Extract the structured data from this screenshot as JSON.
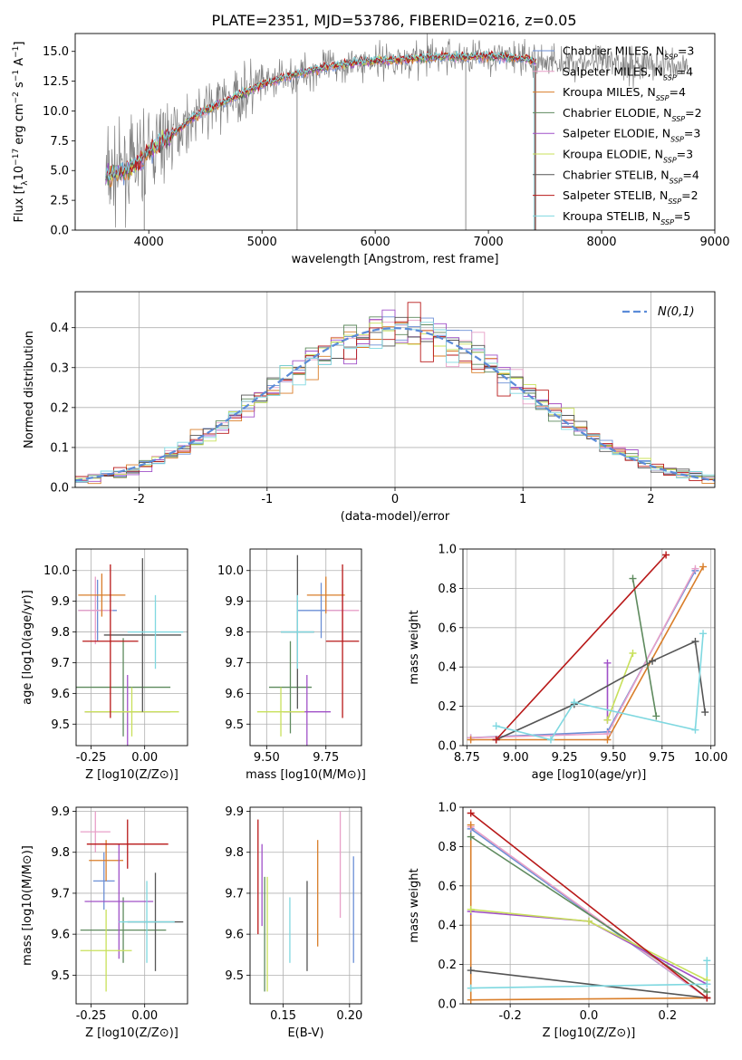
{
  "figure_title": "PLATE=2351, MJD=53786, FIBERID=0216, z=0.05",
  "series_styles": [
    {
      "name": "Chabrier MILES",
      "nssp": "3",
      "color": "#6b8fd6"
    },
    {
      "name": "Salpeter MILES",
      "nssp": "4",
      "color": "#e8a0c8"
    },
    {
      "name": "Kroupa MILES",
      "nssp": "4",
      "color": "#d97e2a"
    },
    {
      "name": "Chabrier ELODIE",
      "nssp": "2",
      "color": "#5e8a5e"
    },
    {
      "name": "Salpeter ELODIE",
      "nssp": "3",
      "color": "#a050c8"
    },
    {
      "name": "Kroupa ELODIE",
      "nssp": "3",
      "color": "#c8e05a"
    },
    {
      "name": "Chabrier STELIB",
      "nssp": "4",
      "color": "#555555"
    },
    {
      "name": "Salpeter STELIB",
      "nssp": "2",
      "color": "#b81818"
    },
    {
      "name": "Kroupa STELIB",
      "nssp": "5",
      "color": "#7fd8e0"
    }
  ],
  "chart_data": [
    {
      "id": "spectrum",
      "type": "line",
      "xlabel": "wavelength [Angstrom, rest frame]",
      "ylabel": "Flux [f_λ 10^-17 erg cm^-2 s^-1 A^-1]",
      "xlim": [
        3350,
        9000
      ],
      "ylim": [
        0,
        16.5
      ],
      "xticks": [
        4000,
        5000,
        6000,
        7000,
        8000,
        9000
      ],
      "yticks": [
        0.0,
        2.5,
        5.0,
        7.5,
        10.0,
        12.5,
        15.0
      ],
      "data_color": "#808080",
      "model_color": "#7fd8e0",
      "continuum": [
        [
          3600,
          4.5
        ],
        [
          3800,
          5.0
        ],
        [
          4000,
          6.5
        ],
        [
          4200,
          8.0
        ],
        [
          4400,
          9.5
        ],
        [
          4600,
          10.5
        ],
        [
          4800,
          11.3
        ],
        [
          5000,
          12.2
        ],
        [
          5200,
          12.8
        ],
        [
          5400,
          13.3
        ],
        [
          5600,
          13.7
        ],
        [
          5800,
          14.0
        ],
        [
          6000,
          14.2
        ],
        [
          6200,
          14.3
        ],
        [
          6400,
          14.4
        ],
        [
          6600,
          14.6
        ],
        [
          6800,
          14.5
        ],
        [
          7000,
          14.6
        ],
        [
          7200,
          14.5
        ],
        [
          7400,
          14.2
        ]
      ],
      "data_range": [
        3620,
        8760
      ],
      "models_range": [
        3620,
        7420
      ],
      "spikes": [
        [
          5310,
          0,
          13.5
        ],
        [
          6800,
          0,
          14.2
        ],
        [
          3960,
          0,
          7.5
        ]
      ],
      "legend": "top-right"
    },
    {
      "id": "residual_histogram",
      "type": "histogram",
      "xlabel": "(data-model)/error",
      "ylabel": "Normed distribution",
      "xlim": [
        -2.5,
        2.5
      ],
      "ylim": [
        0,
        0.49
      ],
      "xticks": [
        -2,
        -1,
        0,
        1,
        2
      ],
      "yticks": [
        0.0,
        0.1,
        0.2,
        0.3,
        0.4
      ],
      "bin_width": 0.1,
      "gaussian_label": "N(0,1)",
      "gaussian_color": "#5b8bd8",
      "legend": "top-right"
    },
    {
      "id": "age_vs_Z",
      "type": "errorbar",
      "xlabel": "Z [log10(Z/Z⊙)]",
      "ylabel": "age [log10(age/yr)]",
      "xlim": [
        -0.32,
        0.2
      ],
      "ylim": [
        9.43,
        10.07
      ],
      "xticks": [
        -0.25,
        0.0
      ],
      "yticks": [
        9.5,
        9.6,
        9.7,
        9.8,
        9.9,
        10.0
      ],
      "points": [
        {
          "x": -0.22,
          "y": 9.87,
          "xerr": 0.09,
          "yerr": 0.1
        },
        {
          "x": -0.23,
          "y": 9.87,
          "xerr": 0.08,
          "yerr": 0.11
        },
        {
          "x": -0.2,
          "y": 9.92,
          "xerr": 0.11,
          "yerr": 0.07
        },
        {
          "x": -0.1,
          "y": 9.62,
          "xerr": 0.22,
          "yerr": 0.16
        },
        {
          "x": -0.08,
          "y": 9.54,
          "xerr": 0.2,
          "yerr": 0.12
        },
        {
          "x": -0.06,
          "y": 9.54,
          "xerr": 0.22,
          "yerr": 0.08
        },
        {
          "x": -0.01,
          "y": 9.79,
          "xerr": 0.18,
          "yerr": 0.25
        },
        {
          "x": -0.16,
          "y": 9.77,
          "xerr": 0.13,
          "yerr": 0.25
        },
        {
          "x": 0.05,
          "y": 9.8,
          "xerr": 0.13,
          "yerr": 0.12
        }
      ]
    },
    {
      "id": "age_vs_mass",
      "type": "errorbar",
      "xlabel": "mass [log10(M/M⊙)]",
      "ylabel": "",
      "xlim": [
        9.43,
        9.9
      ],
      "ylim": [
        9.43,
        10.07
      ],
      "xticks": [
        9.5,
        9.75
      ],
      "yticks": [
        9.5,
        9.6,
        9.7,
        9.8,
        9.9,
        10.0
      ],
      "points": [
        {
          "x": 9.73,
          "y": 9.87,
          "xerr": 0.1,
          "yerr": 0.09
        },
        {
          "x": 9.82,
          "y": 9.87,
          "xerr": 0.07,
          "yerr": 0.1
        },
        {
          "x": 9.75,
          "y": 9.92,
          "xerr": 0.08,
          "yerr": 0.06
        },
        {
          "x": 9.6,
          "y": 9.62,
          "xerr": 0.09,
          "yerr": 0.15
        },
        {
          "x": 9.67,
          "y": 9.54,
          "xerr": 0.1,
          "yerr": 0.12
        },
        {
          "x": 9.56,
          "y": 9.54,
          "xerr": 0.1,
          "yerr": 0.08
        },
        {
          "x": 9.63,
          "y": 9.8,
          "xerr": 0.07,
          "yerr": 0.25
        },
        {
          "x": 9.82,
          "y": 9.77,
          "xerr": 0.07,
          "yerr": 0.25
        },
        {
          "x": 9.63,
          "y": 9.8,
          "xerr": 0.07,
          "yerr": 0.12
        }
      ]
    },
    {
      "id": "massweight_vs_age",
      "type": "line",
      "xlabel": "age [log10(age/yr)]",
      "ylabel": "mass weight",
      "xlim": [
        8.73,
        10.02
      ],
      "ylim": [
        0,
        1.0
      ],
      "xticks": [
        8.75,
        9.0,
        9.25,
        9.5,
        9.75,
        10.0
      ],
      "yticks": [
        0.0,
        0.2,
        0.4,
        0.6,
        0.8,
        1.0
      ],
      "series": [
        {
          "x": [
            8.77,
            9.47,
            9.92
          ],
          "y": [
            0.04,
            0.07,
            0.89
          ]
        },
        {
          "x": [
            8.77,
            9.47,
            9.92
          ],
          "y": [
            0.04,
            0.06,
            0.9
          ]
        },
        {
          "x": [
            8.77,
            9.47,
            9.96
          ],
          "y": [
            0.03,
            0.03,
            0.91
          ]
        },
        {
          "x": [
            9.6,
            9.72
          ],
          "y": [
            0.85,
            0.15
          ]
        },
        {
          "x": [
            9.47,
            9.47
          ],
          "y": [
            0.42,
            0.13
          ]
        },
        {
          "x": [
            9.47,
            9.6
          ],
          "y": [
            0.13,
            0.47
          ]
        },
        {
          "x": [
            8.9,
            9.3,
            9.7,
            9.92,
            9.97
          ],
          "y": [
            0.03,
            0.21,
            0.43,
            0.53,
            0.17
          ]
        },
        {
          "x": [
            8.9,
            9.77
          ],
          "y": [
            0.03,
            0.97
          ]
        },
        {
          "x": [
            8.9,
            9.18,
            9.3,
            9.92,
            9.96
          ],
          "y": [
            0.1,
            0.03,
            0.22,
            0.08,
            0.57
          ]
        }
      ]
    },
    {
      "id": "mass_vs_Z",
      "type": "errorbar",
      "xlabel": "Z [log10(Z/Z⊙)]",
      "ylabel": "mass [log10(M/M⊙)]",
      "xlim": [
        -0.32,
        0.2
      ],
      "ylim": [
        9.43,
        9.91
      ],
      "xticks": [
        -0.25,
        0.0
      ],
      "yticks": [
        9.5,
        9.6,
        9.7,
        9.8,
        9.9
      ],
      "points": [
        {
          "x": -0.19,
          "y": 9.73,
          "xerr": 0.05,
          "yerr": 0.07
        },
        {
          "x": -0.23,
          "y": 9.85,
          "xerr": 0.07,
          "yerr": 0.05
        },
        {
          "x": -0.18,
          "y": 9.78,
          "xerr": 0.08,
          "yerr": 0.05
        },
        {
          "x": -0.1,
          "y": 9.61,
          "xerr": 0.2,
          "yerr": 0.08
        },
        {
          "x": -0.12,
          "y": 9.68,
          "xerr": 0.16,
          "yerr": 0.14
        },
        {
          "x": -0.18,
          "y": 9.56,
          "xerr": 0.12,
          "yerr": 0.1
        },
        {
          "x": 0.05,
          "y": 9.63,
          "xerr": 0.13,
          "yerr": 0.12
        },
        {
          "x": -0.08,
          "y": 9.82,
          "xerr": 0.19,
          "yerr": 0.06
        },
        {
          "x": 0.01,
          "y": 9.63,
          "xerr": 0.13,
          "yerr": 0.1
        }
      ]
    },
    {
      "id": "mass_vs_ebv",
      "type": "errorbar",
      "xlabel": "E(B-V)",
      "ylabel": "",
      "xlim": [
        0.125,
        0.209
      ],
      "ylim": [
        9.43,
        9.91
      ],
      "xticks": [
        0.15,
        0.2
      ],
      "yticks": [
        9.5,
        9.6,
        9.7,
        9.8,
        9.9
      ],
      "points": [
        {
          "x": 0.203,
          "y": 9.66,
          "xerr": 0,
          "yerr": 0.13
        },
        {
          "x": 0.193,
          "y": 9.77,
          "xerr": 0,
          "yerr": 0.13
        },
        {
          "x": 0.176,
          "y": 9.7,
          "xerr": 0,
          "yerr": 0.13
        },
        {
          "x": 0.136,
          "y": 9.6,
          "xerr": 0,
          "yerr": 0.14
        },
        {
          "x": 0.134,
          "y": 9.72,
          "xerr": 0,
          "yerr": 0.1
        },
        {
          "x": 0.138,
          "y": 9.6,
          "xerr": 0,
          "yerr": 0.14
        },
        {
          "x": 0.168,
          "y": 9.62,
          "xerr": 0,
          "yerr": 0.11
        },
        {
          "x": 0.131,
          "y": 9.74,
          "xerr": 0,
          "yerr": 0.14
        },
        {
          "x": 0.155,
          "y": 9.61,
          "xerr": 0,
          "yerr": 0.08
        }
      ]
    },
    {
      "id": "massweight_vs_Z",
      "type": "line",
      "xlabel": "Z [log10(Z/Z⊙)]",
      "ylabel": "mass weight",
      "xlim": [
        -0.32,
        0.32
      ],
      "ylim": [
        0,
        1.0
      ],
      "xticks": [
        -0.2,
        0.0,
        0.2
      ],
      "yticks": [
        0.0,
        0.2,
        0.4,
        0.6,
        0.8,
        1.0
      ],
      "series": [
        {
          "x": [
            -0.3,
            0.3
          ],
          "y": [
            0.89,
            0.03
          ]
        },
        {
          "x": [
            -0.3,
            0.3
          ],
          "y": [
            0.9,
            0.03
          ]
        },
        {
          "x": [
            -0.3,
            -0.3,
            0.3
          ],
          "y": [
            0.91,
            0.02,
            0.03
          ]
        },
        {
          "x": [
            -0.3,
            0.3
          ],
          "y": [
            0.85,
            0.06
          ]
        },
        {
          "x": [
            -0.3,
            0.0,
            0.3
          ],
          "y": [
            0.47,
            0.42,
            0.1
          ]
        },
        {
          "x": [
            -0.3,
            0.0,
            0.3
          ],
          "y": [
            0.48,
            0.42,
            0.12
          ]
        },
        {
          "x": [
            -0.3,
            0.3
          ],
          "y": [
            0.17,
            0.03
          ]
        },
        {
          "x": [
            -0.3,
            0.3
          ],
          "y": [
            0.97,
            0.03
          ]
        },
        {
          "x": [
            -0.3,
            0.3,
            0.3
          ],
          "y": [
            0.08,
            0.1,
            0.22
          ]
        }
      ]
    }
  ]
}
